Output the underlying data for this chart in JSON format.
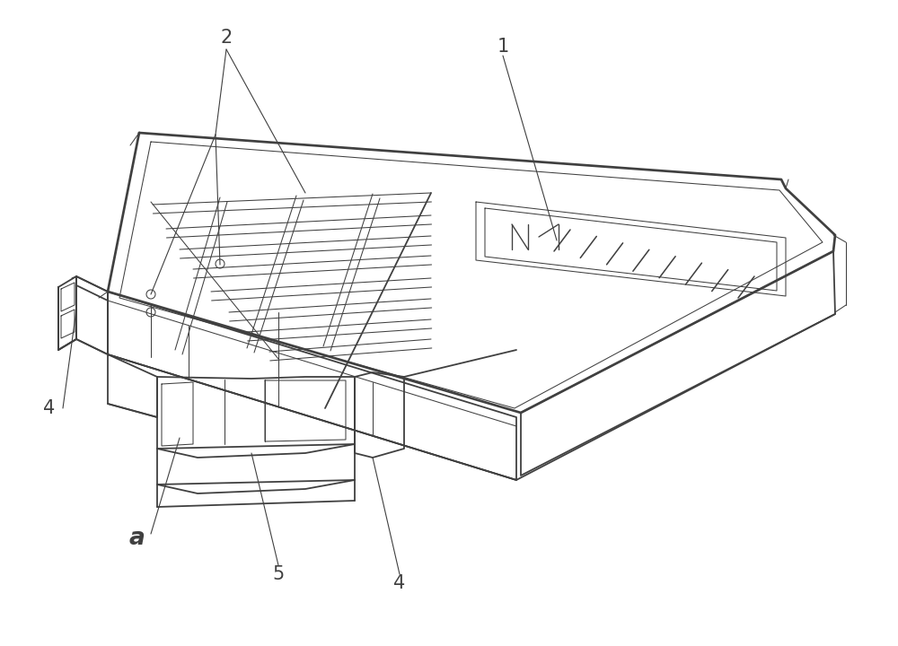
{
  "bg_color": "#ffffff",
  "lc": "#404040",
  "lw": 1.3,
  "tlw": 0.75,
  "alw": 0.8,
  "fs": 15,
  "fig_w": 10.0,
  "fig_h": 7.2,
  "dpi": 100
}
